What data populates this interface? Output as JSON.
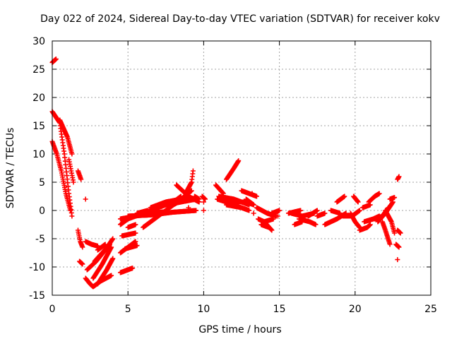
{
  "chart_data": {
    "type": "scatter",
    "title": "Day 022 of 2024, Sidereal Day-to-day VTEC variation (SDTVAR) for receiver kokv",
    "xlabel": "GPS time / hours",
    "ylabel": "SDTVAR / TECUs",
    "xlim": [
      0,
      25
    ],
    "ylim": [
      -15,
      30
    ],
    "xticks": [
      0,
      5,
      10,
      15,
      20,
      25
    ],
    "yticks": [
      -15,
      -10,
      -5,
      0,
      5,
      10,
      15,
      20,
      25,
      30
    ],
    "grid": true,
    "marker": "+",
    "color": "#ff0000",
    "segments": [
      {
        "x": [
          0.0,
          0.25
        ],
        "y": [
          26.2,
          26.8
        ]
      },
      {
        "x": [
          0.0,
          0.5,
          0.8,
          1.1,
          1.3
        ],
        "y": [
          17.5,
          15.5,
          10.0,
          3.0,
          -1.0
        ]
      },
      {
        "x": [
          0.0,
          0.3,
          0.6,
          0.9,
          1.2
        ],
        "y": [
          12.2,
          10.0,
          7.0,
          3.0,
          0.0
        ]
      },
      {
        "x": [
          0.5,
          1.0,
          1.3
        ],
        "y": [
          16.0,
          13.0,
          10.0
        ]
      },
      {
        "x": [
          1.1,
          1.4
        ],
        "y": [
          9.0,
          5.0
        ]
      },
      {
        "x": [
          1.7,
          1.9
        ],
        "y": [
          7.0,
          5.5
        ]
      },
      {
        "x": [
          1.7,
          1.85,
          2.0
        ],
        "y": [
          -3.5,
          -5.5,
          -6.5
        ]
      },
      {
        "x": [
          1.8,
          2.0
        ],
        "y": [
          -9.0,
          -9.5
        ]
      },
      {
        "x": [
          2.2
        ],
        "y": [
          2.0
        ]
      },
      {
        "x": [
          2.2,
          2.6,
          3.0
        ],
        "y": [
          -5.5,
          -6.0,
          -6.3
        ]
      },
      {
        "x": [
          2.2,
          2.5,
          2.7,
          3.2,
          3.9
        ],
        "y": [
          -12.0,
          -13.0,
          -13.5,
          -12.5,
          -11.5
        ]
      },
      {
        "x": [
          2.3,
          2.9,
          3.5,
          4.0
        ],
        "y": [
          -10.5,
          -9.0,
          -7.0,
          -5.0
        ]
      },
      {
        "x": [
          2.7,
          3.3,
          3.9
        ],
        "y": [
          -12.0,
          -9.5,
          -6.5
        ]
      },
      {
        "x": [
          3.0,
          3.6,
          4.0
        ],
        "y": [
          -13.0,
          -10.5,
          -8.5
        ]
      },
      {
        "x": [
          2.8,
          3.3,
          3.8
        ],
        "y": [
          -9.0,
          -7.5,
          -6.0
        ]
      },
      {
        "x": [
          3.0,
          3.5
        ],
        "y": [
          -7.0,
          -6.0
        ]
      },
      {
        "x": [
          4.5,
          5.3
        ],
        "y": [
          -11.0,
          -10.2
        ]
      },
      {
        "x": [
          4.5,
          5.0,
          5.5
        ],
        "y": [
          -7.5,
          -6.5,
          -5.5
        ]
      },
      {
        "x": [
          4.8,
          5.2,
          5.6
        ],
        "y": [
          -6.8,
          -6.5,
          -6.2
        ]
      },
      {
        "x": [
          4.6,
          5.5
        ],
        "y": [
          -4.5,
          -4.0
        ]
      },
      {
        "x": [
          4.5,
          5.0,
          6.0,
          7.0,
          8.0,
          8.5
        ],
        "y": [
          -2.5,
          -1.5,
          -0.5,
          0.5,
          1.5,
          2.5
        ]
      },
      {
        "x": [
          4.5,
          5.5,
          6.5,
          7.5
        ],
        "y": [
          -1.5,
          -1.0,
          -0.5,
          -0.2
        ]
      },
      {
        "x": [
          5.0,
          5.5
        ],
        "y": [
          -3.0,
          -2.5
        ]
      },
      {
        "x": [
          5.0,
          6.5,
          8.0,
          9.5
        ],
        "y": [
          -1.0,
          -0.8,
          -0.3,
          0.0
        ]
      },
      {
        "x": [
          5.6,
          6.3
        ],
        "y": [
          -0.5,
          0.0
        ]
      },
      {
        "x": [
          6.0,
          7.0,
          8.0,
          9.0,
          9.7
        ],
        "y": [
          -3.0,
          -1.0,
          1.0,
          2.5,
          1.5
        ]
      },
      {
        "x": [
          6.5,
          7.5,
          8.5,
          9.2
        ],
        "y": [
          0.5,
          1.5,
          2.0,
          3.5
        ]
      },
      {
        "x": [
          7.5,
          8.5,
          9.5
        ],
        "y": [
          1.0,
          1.5,
          2.0
        ]
      },
      {
        "x": [
          8.2,
          8.8
        ],
        "y": [
          4.5,
          3.0
        ]
      },
      {
        "x": [
          8.8,
          9.2,
          9.3
        ],
        "y": [
          3.0,
          5.0,
          7.0
        ]
      },
      {
        "x": [
          9.0
        ],
        "y": [
          0.5
        ]
      },
      {
        "x": [
          9.4,
          9.7
        ],
        "y": [
          2.5,
          2.0
        ]
      },
      {
        "x": [
          10.0,
          10.0
        ],
        "y": [
          1.5,
          0.0
        ]
      },
      {
        "x": [
          9.9,
          10.1
        ],
        "y": [
          2.5,
          2.0
        ]
      },
      {
        "x": [
          10.8,
          11.3
        ],
        "y": [
          4.5,
          3.0
        ]
      },
      {
        "x": [
          10.9,
          11.5,
          12.5
        ],
        "y": [
          2.0,
          1.5,
          1.5
        ]
      },
      {
        "x": [
          11.0,
          12.0,
          13.0
        ],
        "y": [
          2.5,
          2.0,
          1.0
        ]
      },
      {
        "x": [
          11.5,
          12.5,
          13.0
        ],
        "y": [
          1.0,
          0.5,
          0.0
        ]
      },
      {
        "x": [
          11.5,
          12.0,
          12.3
        ],
        "y": [
          5.5,
          7.5,
          8.8
        ]
      },
      {
        "x": [
          12.2,
          12.8,
          13.3
        ],
        "y": [
          1.5,
          1.5,
          1.0
        ]
      },
      {
        "x": [
          12.5,
          13.0,
          13.5
        ],
        "y": [
          3.5,
          3.0,
          2.5
        ]
      },
      {
        "x": [
          12.8,
          13.3
        ],
        "y": [
          2.0,
          1.0
        ]
      },
      {
        "x": [
          13.2
        ],
        "y": [
          3.0
        ]
      },
      {
        "x": [
          13.3
        ],
        "y": [
          -0.5
        ]
      },
      {
        "x": [
          13.5,
          14.2,
          14.8
        ],
        "y": [
          0.5,
          -0.5,
          -1.0
        ]
      },
      {
        "x": [
          13.6,
          14.0,
          14.6
        ],
        "y": [
          -1.5,
          -2.0,
          -1.5
        ]
      },
      {
        "x": [
          13.8,
          14.3
        ],
        "y": [
          -2.5,
          -3.0
        ]
      },
      {
        "x": [
          14.0,
          14.5
        ],
        "y": [
          -2.0,
          -3.5
        ]
      },
      {
        "x": [
          14.5,
          15.0
        ],
        "y": [
          -0.5,
          0.0
        ]
      },
      {
        "x": [
          14.9
        ],
        "y": [
          -1.0
        ]
      },
      {
        "x": [
          15.6,
          16.4
        ],
        "y": [
          -0.5,
          0.0
        ]
      },
      {
        "x": [
          15.8,
          16.5,
          17.3
        ],
        "y": [
          -0.5,
          -1.0,
          -0.5
        ]
      },
      {
        "x": [
          16.0,
          16.5
        ],
        "y": [
          -2.5,
          -2.0
        ]
      },
      {
        "x": [
          16.3,
          17.0,
          17.4
        ],
        "y": [
          -1.5,
          -2.0,
          -2.5
        ]
      },
      {
        "x": [
          16.9,
          17.5
        ],
        "y": [
          -1.0,
          0.0
        ]
      },
      {
        "x": [
          17.5,
          18.0
        ],
        "y": [
          -1.0,
          -0.5
        ]
      },
      {
        "x": [
          18.0,
          18.8,
          19.4
        ],
        "y": [
          -2.5,
          -1.5,
          -0.5
        ]
      },
      {
        "x": [
          18.4,
          19.0
        ],
        "y": [
          0.0,
          -0.5
        ]
      },
      {
        "x": [
          18.8,
          19.3
        ],
        "y": [
          1.5,
          2.5
        ]
      },
      {
        "x": [
          19.2,
          19.8,
          20.3
        ],
        "y": [
          -1.0,
          -1.0,
          0.0
        ]
      },
      {
        "x": [
          19.9,
          20.2
        ],
        "y": [
          2.5,
          1.5
        ]
      },
      {
        "x": [
          19.7,
          20.0,
          20.3
        ],
        "y": [
          -0.5,
          -2.0,
          -3.0
        ]
      },
      {
        "x": [
          20.3,
          20.8,
          21.0
        ],
        "y": [
          -3.5,
          -3.0,
          -2.5
        ]
      },
      {
        "x": [
          20.5,
          21.0
        ],
        "y": [
          0.5,
          1.0
        ]
      },
      {
        "x": [
          20.6,
          21.2,
          21.6
        ],
        "y": [
          -2.0,
          -1.5,
          -1.0
        ]
      },
      {
        "x": [
          20.9,
          21.3,
          21.6
        ],
        "y": [
          1.5,
          2.5,
          3.0
        ]
      },
      {
        "x": [
          21.5,
          22.0,
          22.5
        ],
        "y": [
          -2.0,
          -0.5,
          1.5
        ]
      },
      {
        "x": [
          21.3,
          21.8,
          22.2
        ],
        "y": [
          -1.5,
          -1.0,
          0.5
        ]
      },
      {
        "x": [
          21.8,
          22.0,
          22.3
        ],
        "y": [
          -2.0,
          -3.5,
          -6.0
        ]
      },
      {
        "x": [
          22.0,
          22.4,
          22.6
        ],
        "y": [
          0.0,
          -2.0,
          -4.0
        ]
      },
      {
        "x": [
          22.3,
          22.6
        ],
        "y": [
          2.0,
          2.3
        ]
      },
      {
        "x": [
          22.8,
          23.0
        ],
        "y": [
          -3.5,
          -4.0
        ]
      },
      {
        "x": [
          22.7,
          22.9
        ],
        "y": [
          -6.0,
          -6.5
        ]
      },
      {
        "x": [
          22.8,
          22.9
        ],
        "y": [
          5.5,
          6.0
        ]
      },
      {
        "x": [
          22.8
        ],
        "y": [
          -8.7
        ]
      }
    ]
  }
}
